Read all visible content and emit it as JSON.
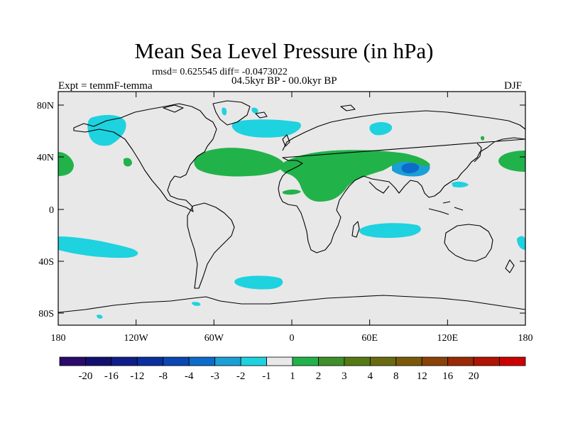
{
  "title": "Mean Sea Level Pressure (in hPa)",
  "stats": "rmsd= 0.625545 diff= -0.0473022",
  "period": "04.5kyr BP - 00.0kyr BP",
  "experiment": "Expt = temmF-temma",
  "season": "DJF",
  "map": {
    "background": "#e8e8e8",
    "lat_ticks": [
      "80N",
      "40N",
      "0",
      "40S",
      "80S"
    ],
    "lon_ticks": [
      "180",
      "120W",
      "60W",
      "0",
      "60E",
      "120E",
      "180"
    ]
  },
  "colorbar": {
    "colors": [
      "#2a0a6b",
      "#12106e",
      "#101e8a",
      "#0a2f9e",
      "#0a47b5",
      "#0d6cc9",
      "#1aa0d6",
      "#1ed2df",
      "#e8e8e8",
      "#22b24a",
      "#3f8f2a",
      "#557a15",
      "#6a6a10",
      "#7a5a0a",
      "#8a4208",
      "#9a2a06",
      "#b01404",
      "#cc0000"
    ],
    "labels": [
      "-20",
      "-16",
      "-12",
      "-8",
      "-4",
      "-3",
      "-2",
      "-1",
      "1",
      "2",
      "3",
      "4",
      "8",
      "12",
      "16",
      "20"
    ]
  }
}
